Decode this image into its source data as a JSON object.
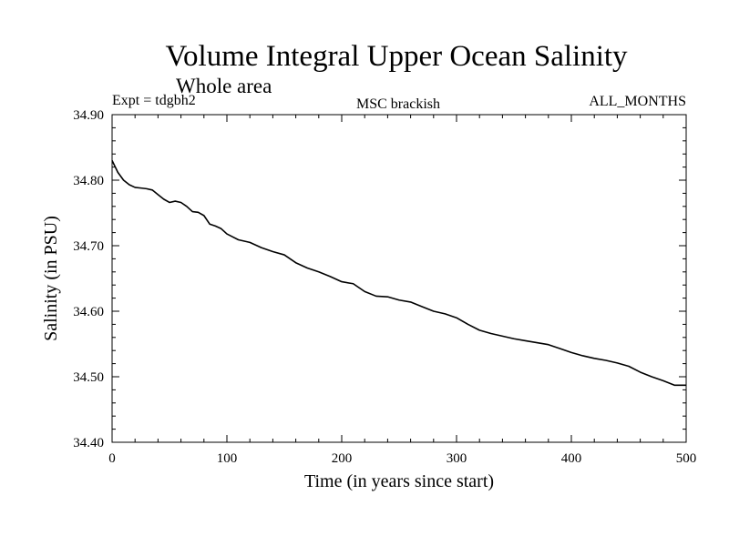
{
  "chart_data": {
    "type": "line",
    "title": "Volume Integral Upper Ocean Salinity",
    "subtitle": "Whole area",
    "expt_label": "Expt = tdgbh2",
    "center_label": "MSC brackish",
    "right_label": "ALL_MONTHS",
    "xlabel": "Time (in years since start)",
    "ylabel": "Salinity (in PSU)",
    "xlim": [
      0,
      500
    ],
    "ylim": [
      34.4,
      34.9
    ],
    "x_ticks": [
      "0",
      "100",
      "200",
      "300",
      "400",
      "500"
    ],
    "y_ticks": [
      "34.40",
      "34.50",
      "34.60",
      "34.70",
      "34.80",
      "34.90"
    ],
    "grid": false,
    "series": [
      {
        "x": [
          0,
          5,
          10,
          15,
          20,
          25,
          30,
          35,
          40,
          45,
          50,
          55,
          60,
          65,
          70,
          75,
          80,
          85,
          90,
          95,
          100,
          110,
          120,
          130,
          140,
          150,
          160,
          170,
          180,
          190,
          200,
          210,
          220,
          230,
          240,
          250,
          260,
          270,
          280,
          290,
          300,
          310,
          320,
          330,
          340,
          350,
          360,
          370,
          380,
          390,
          400,
          410,
          420,
          430,
          440,
          450,
          460,
          470,
          480,
          490,
          500
        ],
        "y": [
          34.83,
          34.812,
          34.8,
          34.793,
          34.789,
          34.788,
          34.787,
          34.785,
          34.778,
          34.771,
          34.766,
          34.768,
          34.766,
          34.76,
          34.752,
          34.751,
          34.746,
          34.733,
          34.73,
          34.726,
          34.718,
          34.709,
          34.705,
          34.697,
          34.691,
          34.686,
          34.674,
          34.666,
          34.66,
          34.653,
          34.645,
          34.642,
          34.63,
          34.623,
          34.622,
          34.617,
          34.614,
          34.607,
          34.6,
          34.596,
          34.59,
          34.58,
          34.571,
          34.566,
          34.562,
          34.558,
          34.555,
          34.552,
          34.549,
          34.543,
          34.537,
          34.532,
          34.528,
          34.525,
          34.521,
          34.516,
          34.507,
          34.5,
          34.494,
          34.487,
          34.487
        ]
      }
    ]
  }
}
